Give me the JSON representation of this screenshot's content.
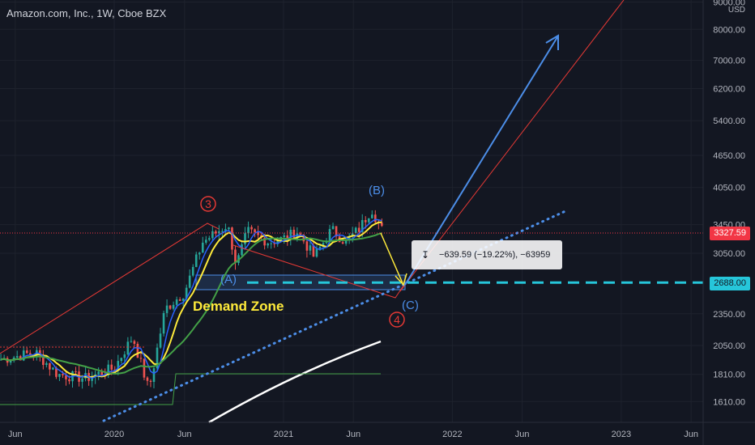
{
  "header": {
    "title": "Amazon.com, Inc., 1W, Cboe BZX"
  },
  "price_axis": {
    "currency": "USD",
    "ticks": [
      "9000.00",
      "8000.00",
      "7000.00",
      "6200.00",
      "5400.00",
      "4650.00",
      "4050.00",
      "3450.00",
      "3050.00",
      "2688.00",
      "2350.00",
      "2050.00",
      "1810.00",
      "1610.00"
    ],
    "last_price_label": "3327.59",
    "target_label": "2688.00"
  },
  "time_axis": {
    "ticks": [
      "Jun",
      "2020",
      "Jun",
      "2021",
      "Jun",
      "2022",
      "Jun",
      "2023",
      "Jun"
    ]
  },
  "annotations": {
    "wave_3": "3",
    "wave_4": "4",
    "wave_a": "(A)",
    "wave_b": "(B)",
    "wave_c": "(C)",
    "demand_zone": "Demand Zone",
    "measure": "−639.59 (−19.22%), −63959"
  },
  "colors": {
    "background": "#131722",
    "candle_up": "#26a69a",
    "candle_down": "#ef5350",
    "ma_fast": "#2962ff",
    "ma_mid": "#ffeb3b",
    "ma_slow": "#43a047",
    "ma_long": "#ffffff",
    "projection_blue": "#4c8ee8",
    "trend_red": "#e53935",
    "support_dotted": "#4c8ee8",
    "target_dashed": "#26c6da",
    "last_price_tag": "#f23645",
    "target_tag": "#26c6da",
    "wave_label_red": "#e53935",
    "wave_label_blue": "#4c8ee8",
    "demand_label": "#ffeb3b"
  },
  "chart_data": {
    "type": "candlestick",
    "symbol": "Amazon.com, Inc.",
    "interval": "1W",
    "exchange": "Cboe BZX",
    "scale": "log",
    "y_range": [
      1450,
      9400
    ],
    "x_range": [
      "2019-05-01",
      "2023-07-01"
    ],
    "last_price": 3327.59,
    "target_price": 2688.0,
    "price_series": [
      {
        "date": "2019-05-01",
        "close": 1930
      },
      {
        "date": "2019-07-15",
        "close": 1990
      },
      {
        "date": "2019-09-01",
        "close": 1810
      },
      {
        "date": "2019-11-01",
        "close": 1780
      },
      {
        "date": "2020-01-01",
        "close": 1860
      },
      {
        "date": "2020-02-10",
        "close": 2130
      },
      {
        "date": "2020-03-16",
        "close": 1690
      },
      {
        "date": "2020-04-20",
        "close": 2400
      },
      {
        "date": "2020-06-01",
        "close": 2580
      },
      {
        "date": "2020-07-10",
        "close": 3200
      },
      {
        "date": "2020-09-02",
        "close": 3450
      },
      {
        "date": "2020-09-21",
        "close": 2900
      },
      {
        "date": "2020-10-15",
        "close": 3350
      },
      {
        "date": "2020-12-01",
        "close": 3200
      },
      {
        "date": "2021-01-01",
        "close": 3250
      },
      {
        "date": "2021-02-01",
        "close": 3350
      },
      {
        "date": "2021-03-08",
        "close": 3000
      },
      {
        "date": "2021-04-15",
        "close": 3380
      },
      {
        "date": "2021-05-15",
        "close": 3200
      },
      {
        "date": "2021-06-15",
        "close": 3400
      },
      {
        "date": "2021-07-10",
        "close": 3700
      },
      {
        "date": "2021-08-05",
        "close": 3327.59
      }
    ]
  }
}
